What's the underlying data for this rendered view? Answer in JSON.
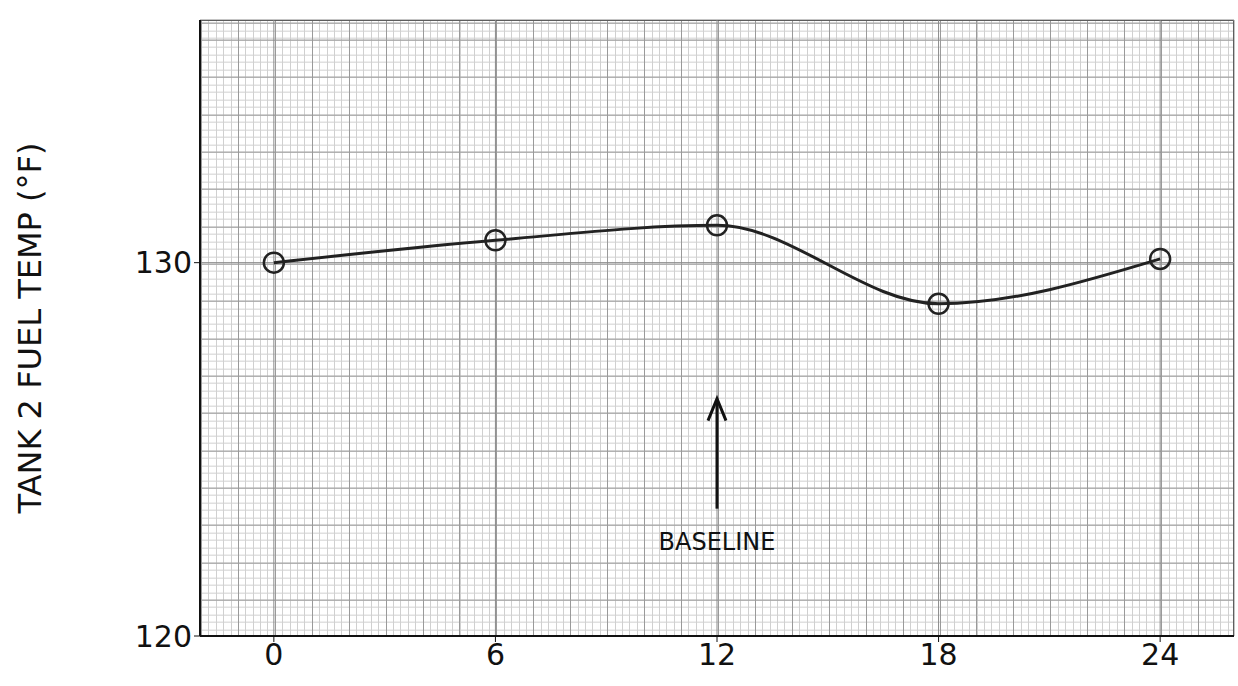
{
  "chart_data": {
    "type": "line",
    "y_label": "TANK 2 FUEL TEMP (°F)",
    "x": [
      0,
      6,
      12,
      18,
      24
    ],
    "values": [
      130.0,
      130.6,
      131.0,
      128.9,
      130.1
    ],
    "xlim": [
      -2,
      26
    ],
    "xticks": [
      0,
      6,
      12,
      18,
      24
    ],
    "ylim": [
      120,
      136.5
    ],
    "yticks": [
      120,
      130
    ],
    "grid": true,
    "marker": "circle",
    "color": "#222222",
    "annotations": [
      {
        "text": "BASELINE",
        "x": 12,
        "y": 122.5
      }
    ]
  }
}
